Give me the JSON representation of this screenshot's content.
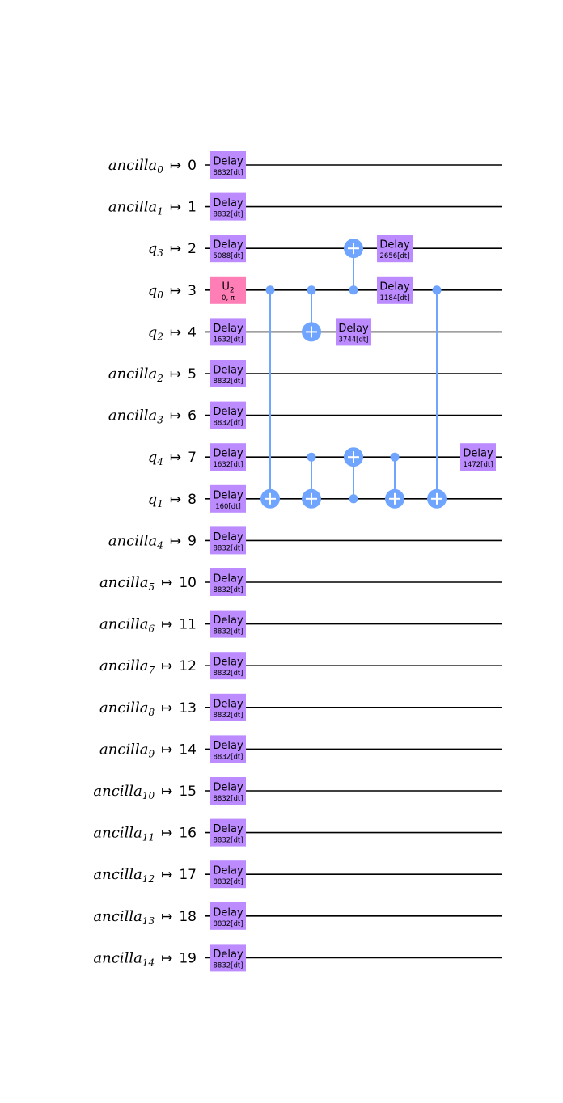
{
  "colors": {
    "delay": "#BB8BFF",
    "u2": "#FF7EB6",
    "cx": "#6FA4FF",
    "wire": "#000000",
    "background": "#FFFFFF"
  },
  "qubits": [
    {
      "name": "ancilla",
      "sub": "0",
      "phys": "0"
    },
    {
      "name": "ancilla",
      "sub": "1",
      "phys": "1"
    },
    {
      "name": "q",
      "sub": "3",
      "phys": "2"
    },
    {
      "name": "q",
      "sub": "0",
      "phys": "3"
    },
    {
      "name": "q",
      "sub": "2",
      "phys": "4"
    },
    {
      "name": "ancilla",
      "sub": "2",
      "phys": "5"
    },
    {
      "name": "ancilla",
      "sub": "3",
      "phys": "6"
    },
    {
      "name": "q",
      "sub": "4",
      "phys": "7"
    },
    {
      "name": "q",
      "sub": "1",
      "phys": "8"
    },
    {
      "name": "ancilla",
      "sub": "4",
      "phys": "9"
    },
    {
      "name": "ancilla",
      "sub": "5",
      "phys": "10"
    },
    {
      "name": "ancilla",
      "sub": "6",
      "phys": "11"
    },
    {
      "name": "ancilla",
      "sub": "7",
      "phys": "12"
    },
    {
      "name": "ancilla",
      "sub": "8",
      "phys": "13"
    },
    {
      "name": "ancilla",
      "sub": "9",
      "phys": "14"
    },
    {
      "name": "ancilla",
      "sub": "10",
      "phys": "15"
    },
    {
      "name": "ancilla",
      "sub": "11",
      "phys": "16"
    },
    {
      "name": "ancilla",
      "sub": "12",
      "phys": "17"
    },
    {
      "name": "ancilla",
      "sub": "13",
      "phys": "18"
    },
    {
      "name": "ancilla",
      "sub": "14",
      "phys": "19"
    }
  ],
  "map_symbol": "↦",
  "gates": [
    {
      "type": "delay",
      "wire": 0,
      "col": 0,
      "label": "Delay",
      "param": "8832[dt]"
    },
    {
      "type": "delay",
      "wire": 1,
      "col": 0,
      "label": "Delay",
      "param": "8832[dt]"
    },
    {
      "type": "delay",
      "wire": 2,
      "col": 0,
      "label": "Delay",
      "param": "5088[dt]"
    },
    {
      "type": "u2",
      "wire": 3,
      "col": 0,
      "label": "U",
      "label_sub": "2",
      "param": "0, π"
    },
    {
      "type": "delay",
      "wire": 4,
      "col": 0,
      "label": "Delay",
      "param": "1632[dt]"
    },
    {
      "type": "delay",
      "wire": 5,
      "col": 0,
      "label": "Delay",
      "param": "8832[dt]"
    },
    {
      "type": "delay",
      "wire": 6,
      "col": 0,
      "label": "Delay",
      "param": "8832[dt]"
    },
    {
      "type": "delay",
      "wire": 7,
      "col": 0,
      "label": "Delay",
      "param": "1632[dt]"
    },
    {
      "type": "delay",
      "wire": 8,
      "col": 0,
      "label": "Delay",
      "param": "160[dt]"
    },
    {
      "type": "delay",
      "wire": 9,
      "col": 0,
      "label": "Delay",
      "param": "8832[dt]"
    },
    {
      "type": "delay",
      "wire": 10,
      "col": 0,
      "label": "Delay",
      "param": "8832[dt]"
    },
    {
      "type": "delay",
      "wire": 11,
      "col": 0,
      "label": "Delay",
      "param": "8832[dt]"
    },
    {
      "type": "delay",
      "wire": 12,
      "col": 0,
      "label": "Delay",
      "param": "8832[dt]"
    },
    {
      "type": "delay",
      "wire": 13,
      "col": 0,
      "label": "Delay",
      "param": "8832[dt]"
    },
    {
      "type": "delay",
      "wire": 14,
      "col": 0,
      "label": "Delay",
      "param": "8832[dt]"
    },
    {
      "type": "delay",
      "wire": 15,
      "col": 0,
      "label": "Delay",
      "param": "8832[dt]"
    },
    {
      "type": "delay",
      "wire": 16,
      "col": 0,
      "label": "Delay",
      "param": "8832[dt]"
    },
    {
      "type": "delay",
      "wire": 17,
      "col": 0,
      "label": "Delay",
      "param": "8832[dt]"
    },
    {
      "type": "delay",
      "wire": 18,
      "col": 0,
      "label": "Delay",
      "param": "8832[dt]"
    },
    {
      "type": "delay",
      "wire": 19,
      "col": 0,
      "label": "Delay",
      "param": "8832[dt]"
    },
    {
      "type": "cx",
      "col": 1,
      "control": 3,
      "target": 8
    },
    {
      "type": "cx",
      "col": 2,
      "control": 3,
      "target": 4
    },
    {
      "type": "cx",
      "col": 2,
      "control": 7,
      "target": 8
    },
    {
      "type": "cx",
      "col": 3,
      "control": 3,
      "target": 2
    },
    {
      "type": "delay",
      "wire": 4,
      "col": 3,
      "label": "Delay",
      "param": "3744[dt]"
    },
    {
      "type": "cx",
      "col": 3,
      "control": 8,
      "target": 7
    },
    {
      "type": "delay",
      "wire": 2,
      "col": 4,
      "label": "Delay",
      "param": "2656[dt]"
    },
    {
      "type": "delay",
      "wire": 3,
      "col": 4,
      "label": "Delay",
      "param": "1184[dt]"
    },
    {
      "type": "cx",
      "col": 4,
      "control": 7,
      "target": 8
    },
    {
      "type": "cx",
      "col": 5,
      "control": 3,
      "target": 8
    },
    {
      "type": "delay",
      "wire": 7,
      "col": 6,
      "label": "Delay",
      "param": "1472[dt]"
    }
  ]
}
